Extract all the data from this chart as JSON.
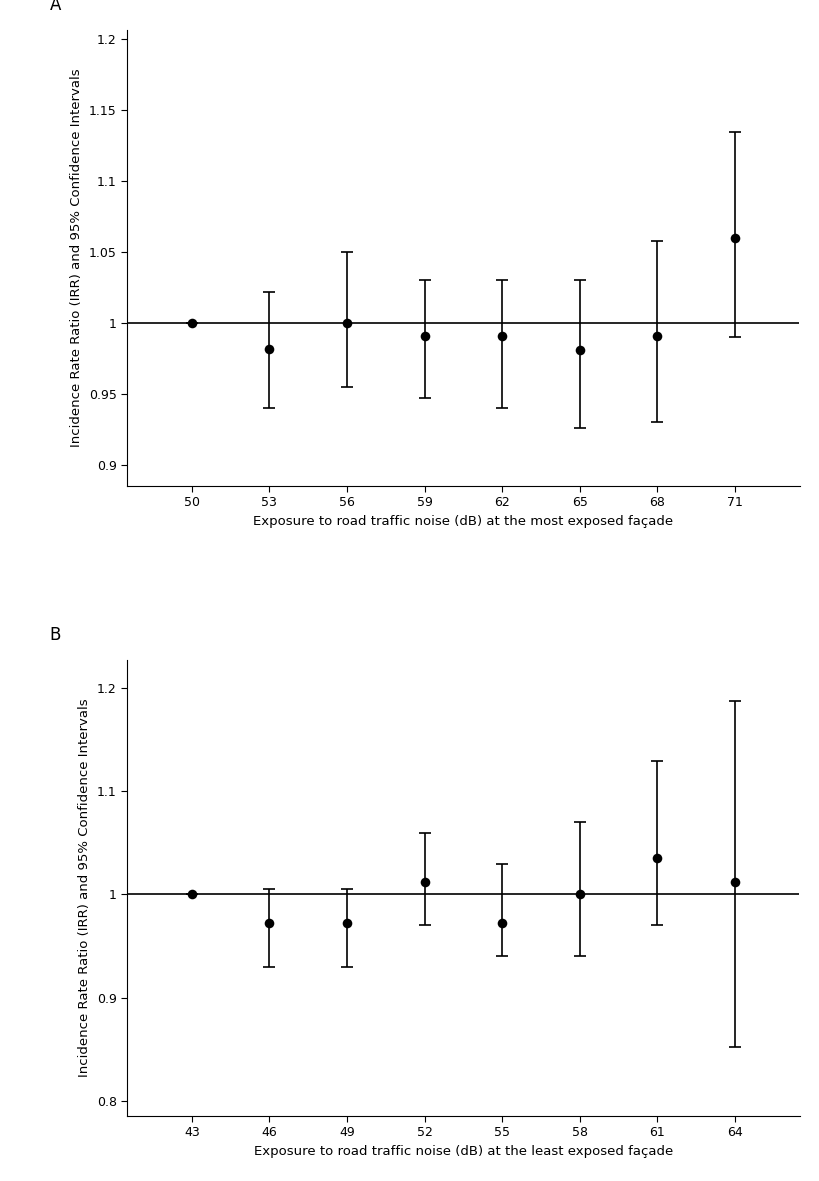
{
  "panel_A": {
    "x": [
      50,
      53,
      56,
      59,
      62,
      65,
      68,
      71
    ],
    "irr": [
      1.0,
      0.982,
      1.0,
      0.991,
      0.991,
      0.981,
      0.991,
      1.06
    ],
    "ci_low": [
      1.0,
      0.94,
      0.955,
      0.947,
      0.94,
      0.926,
      0.93,
      0.99
    ],
    "ci_high": [
      1.0,
      1.022,
      1.05,
      1.03,
      1.03,
      1.03,
      1.058,
      1.135
    ],
    "xlim": [
      47.5,
      73.5
    ],
    "ylim": [
      0.885,
      1.207
    ],
    "yticks": [
      0.9,
      0.95,
      1.0,
      1.05,
      1.1,
      1.15,
      1.2
    ],
    "ytick_labels": [
      "0.9",
      "0.95",
      "1",
      "1.05",
      "1.1",
      "1.15",
      "1.2"
    ],
    "xticks": [
      50,
      53,
      56,
      59,
      62,
      65,
      68,
      71
    ],
    "xlabel": "Exposure to road traffic noise (dB) at the most exposed façade",
    "ylabel": "Incidence Rate Ratio (IRR) and 95% Confidence Intervals",
    "panel_label": "A",
    "ref_line": 1.0
  },
  "panel_B": {
    "x": [
      43,
      46,
      49,
      52,
      55,
      58,
      61,
      64
    ],
    "irr": [
      1.0,
      0.972,
      0.972,
      1.012,
      0.972,
      1.0,
      1.035,
      1.012
    ],
    "ci_low": [
      1.0,
      0.93,
      0.93,
      0.97,
      0.94,
      0.94,
      0.97,
      0.852
    ],
    "ci_high": [
      1.0,
      1.005,
      1.005,
      1.06,
      1.03,
      1.07,
      1.13,
      1.188
    ],
    "xlim": [
      40.5,
      66.5
    ],
    "ylim": [
      0.785,
      1.228
    ],
    "yticks": [
      0.8,
      0.9,
      1.0,
      1.1,
      1.2
    ],
    "ytick_labels": [
      "0.8",
      "0.9",
      "1",
      "1.1",
      "1.2"
    ],
    "xticks": [
      43,
      46,
      49,
      52,
      55,
      58,
      61,
      64
    ],
    "xlabel": "Exposure to road traffic noise (dB) at the least exposed façade",
    "ylabel": "Incidence Rate Ratio (IRR) and 95% Confidence Intervals",
    "panel_label": "B",
    "ref_line": 1.0
  },
  "background_color": "#ffffff",
  "dot_color": "#000000",
  "line_color": "#000000",
  "errorbar_color": "#000000",
  "dot_size": 48,
  "linewidth_ref": 1.2,
  "errorbar_linewidth": 1.2,
  "errorbar_capsize": 4,
  "fontsize_label": 9.5,
  "fontsize_tick": 9,
  "fontsize_panel": 12
}
